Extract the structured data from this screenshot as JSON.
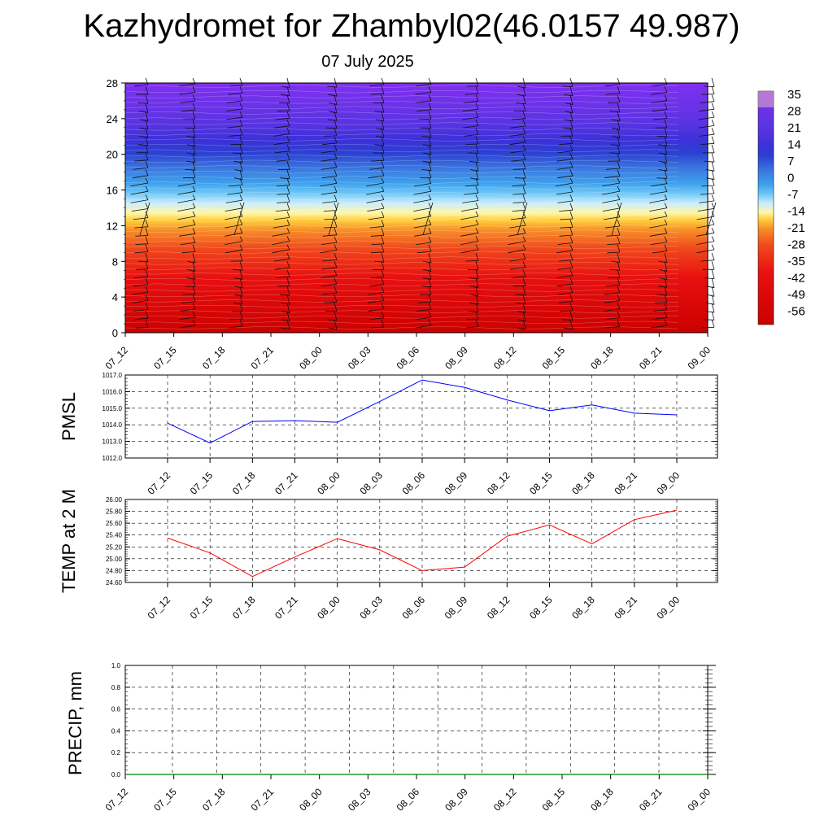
{
  "title": "Kazhydromet for Zhambyl02(46.0157 49.987)",
  "subtitle": "07 July 2025",
  "colors": {
    "pmsl_line": "#0000ff",
    "temp_line": "#ff0000",
    "precip_line": "#008000"
  },
  "chart_data": [
    {
      "type": "heatmap",
      "title": "",
      "ylabel": "",
      "xlabel": "",
      "ylim": [
        0,
        28
      ],
      "y_ticks": [
        "0",
        "4",
        "8",
        "12",
        "16",
        "20",
        "24",
        "28"
      ],
      "x_ticks": [
        "07_12",
        "07_15",
        "07_18",
        "07_21",
        "08_00",
        "08_03",
        "08_06",
        "08_09",
        "08_12",
        "08_15",
        "08_18",
        "08_21",
        "09_00"
      ],
      "colorbar_labels": [
        "35",
        "28",
        "21",
        "14",
        "7",
        "0",
        "-7",
        "-14",
        "-21",
        "-28",
        "-35",
        "-42",
        "-49",
        "-56"
      ],
      "wind_barbs": true
    },
    {
      "type": "line",
      "ylabel": "PMSL",
      "x": [
        "07_12",
        "07_15",
        "07_18",
        "07_21",
        "08_00",
        "08_03",
        "08_06",
        "08_09",
        "08_12",
        "08_15",
        "08_18",
        "08_21",
        "09_00"
      ],
      "y_ticks": [
        "1012.0",
        "1013.0",
        "1014.0",
        "1015.0",
        "1016.0",
        "1017.0"
      ],
      "ylim": [
        1012.0,
        1017.0
      ],
      "grid": true,
      "series": [
        {
          "values": [
            1014.1,
            1012.9,
            1014.2,
            1014.25,
            1014.15,
            1015.4,
            1016.7,
            1016.25,
            1015.5,
            1014.85,
            1015.2,
            1014.7,
            1014.6
          ]
        }
      ]
    },
    {
      "type": "line",
      "ylabel": "TEMP at 2 M",
      "x": [
        "07_12",
        "07_15",
        "07_18",
        "07_21",
        "08_00",
        "08_03",
        "08_06",
        "08_09",
        "08_12",
        "08_15",
        "08_18",
        "08_21",
        "09_00"
      ],
      "y_ticks": [
        "24.60",
        "24.80",
        "25.00",
        "25.20",
        "25.40",
        "25.60",
        "25.80",
        "26.00"
      ],
      "ylim": [
        24.6,
        26.0
      ],
      "grid": true,
      "series": [
        {
          "values": [
            25.35,
            25.1,
            24.7,
            25.03,
            25.34,
            25.15,
            24.8,
            24.86,
            25.38,
            25.57,
            25.25,
            25.66,
            25.82
          ]
        }
      ]
    },
    {
      "type": "line",
      "ylabel": "PRECIP, mm",
      "x": [
        "07_12",
        "07_15",
        "07_18",
        "07_21",
        "08_00",
        "08_03",
        "08_06",
        "08_09",
        "08_12",
        "08_15",
        "08_18",
        "08_21",
        "09_00"
      ],
      "y_ticks": [
        "0.0",
        "0.2",
        "0.4",
        "0.6",
        "0.8",
        "1.0"
      ],
      "ylim": [
        0.0,
        1.0
      ],
      "grid": true,
      "series": [
        {
          "values": [
            0,
            0,
            0,
            0,
            0,
            0,
            0,
            0,
            0,
            0,
            0,
            0,
            0
          ]
        }
      ]
    }
  ]
}
